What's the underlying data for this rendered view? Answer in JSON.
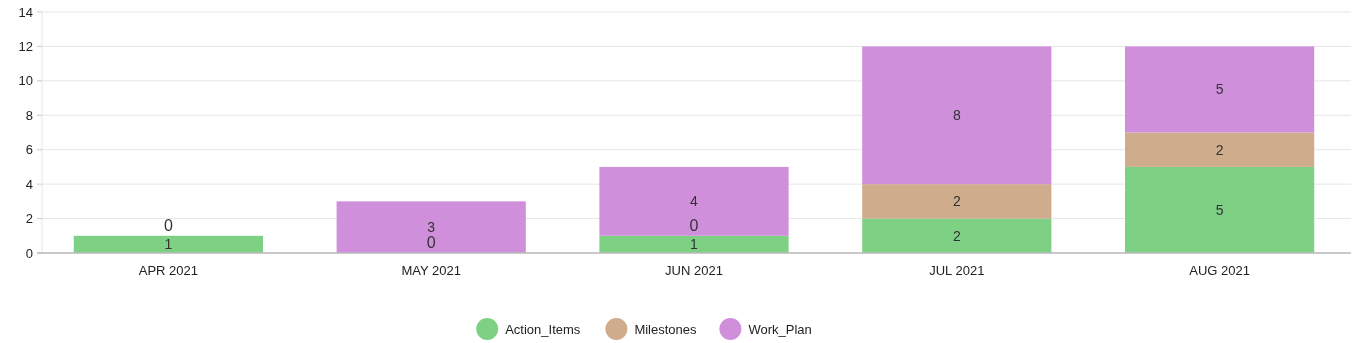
{
  "chart_data": {
    "type": "bar",
    "stacked": true,
    "categories": [
      "APR 2021",
      "MAY 2021",
      "JUN 2021",
      "JUL 2021",
      "AUG 2021"
    ],
    "series": [
      {
        "name": "Action_Items",
        "color": "#7ed085",
        "values": [
          1,
          0,
          1,
          2,
          5
        ],
        "value_labels": [
          "1",
          "0",
          "1",
          "2",
          "5"
        ]
      },
      {
        "name": "Milestones",
        "color": "#cfac8c",
        "values": [
          0,
          0,
          0,
          2,
          2
        ],
        "value_labels": [
          "0",
          null,
          "0",
          "2",
          "2"
        ]
      },
      {
        "name": "Work_Plan",
        "color": "#d08fdb",
        "values": [
          0,
          3,
          4,
          8,
          5
        ],
        "value_labels": [
          null,
          "3",
          "4",
          "8",
          "5"
        ]
      }
    ],
    "ylim": [
      0,
      14
    ],
    "yticks": [
      0,
      2,
      4,
      6,
      8,
      10,
      12,
      14
    ],
    "grid": "y",
    "legend": "bottom"
  }
}
